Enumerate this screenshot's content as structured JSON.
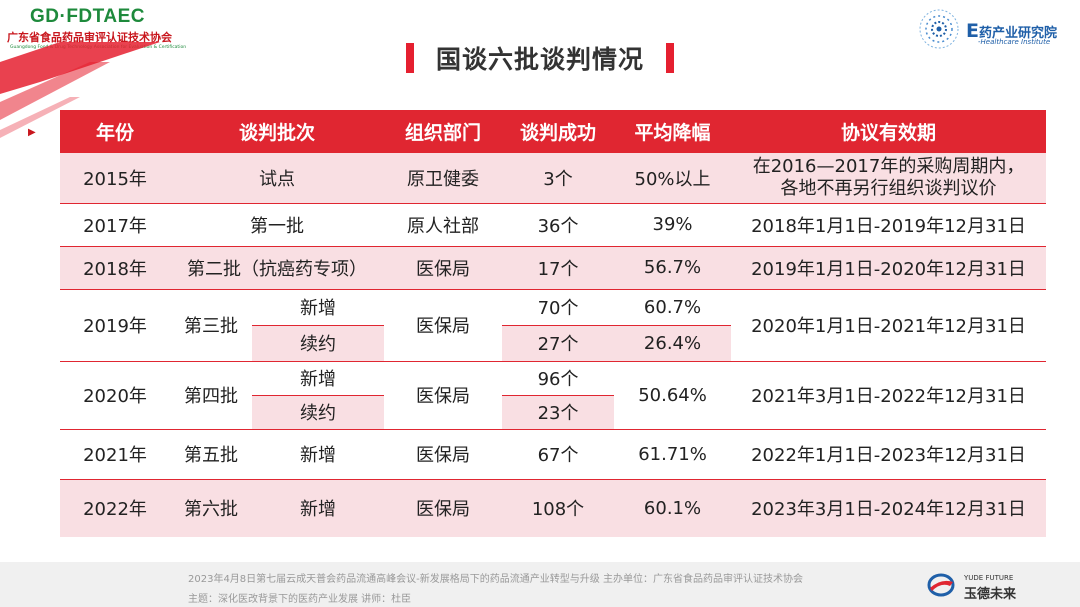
{
  "header": {
    "logo_left": {
      "brand": "GD·FDTAEC",
      "cn": "广东省食品药品审评认证技术协会",
      "en": "Guangdong Food & Drug Technology Association for Evaluation & Certification"
    },
    "title": "国谈六批谈判情况",
    "logo_right": {
      "prefix": "E",
      "name": "药产业研究院",
      "tagline": "-Healthcare Institute"
    }
  },
  "table": {
    "headers": [
      "年份",
      "谈判批次",
      "组织部门",
      "谈判成功",
      "平均降幅",
      "协议有效期"
    ],
    "r2015": {
      "year": "2015年",
      "batch": "试点",
      "dept": "原卫健委",
      "success": "3个",
      "drop": "50%以上",
      "validity_l1": "在2016—2017年的采购周期内，",
      "validity_l2": "各地不再另行组织谈判议价"
    },
    "r2017": {
      "year": "2017年",
      "batch": "第一批",
      "dept": "原人社部",
      "success": "36个",
      "drop": "39%",
      "validity": "2018年1月1日-2019年12月31日"
    },
    "r2018": {
      "year": "2018年",
      "batch": "第二批（抗癌药专项）",
      "dept": "医保局",
      "success": "17个",
      "drop": "56.7%",
      "validity": "2019年1月1日-2020年12月31日"
    },
    "r2019": {
      "year": "2019年",
      "batch": "第三批",
      "type_new": "新增",
      "type_renew": "续约",
      "dept": "医保局",
      "success_new": "70个",
      "success_renew": "27个",
      "drop_new": "60.7%",
      "drop_renew": "26.4%",
      "validity": "2020年1月1日-2021年12月31日"
    },
    "r2020": {
      "year": "2020年",
      "batch": "第四批",
      "type_new": "新增",
      "type_renew": "续约",
      "dept": "医保局",
      "success_new": "96个",
      "success_renew": "23个",
      "drop": "50.64%",
      "validity": "2021年3月1日-2022年12月31日"
    },
    "r2021": {
      "year": "2021年",
      "batch": "第五批",
      "type": "新增",
      "dept": "医保局",
      "success": "67个",
      "drop": "61.71%",
      "validity": "2022年1月1日-2023年12月31日"
    },
    "r2022": {
      "year": "2022年",
      "batch": "第六批",
      "type": "新增",
      "dept": "医保局",
      "success": "108个",
      "drop": "60.1%",
      "validity": "2023年3月1日-2024年12月31日"
    }
  },
  "footer": {
    "line1": "2023年4月8日第七届云成天普会药品流通高峰会议-新发展格局下的药品流通产业转型与升级      主办单位：广东省食品药品审评认证技术协会",
    "line2": "主题：深化医改背景下的医药产业发展  讲师：杜臣",
    "brand_en": "YUDE FUTURE",
    "brand_cn": "玉德未来"
  },
  "colors": {
    "accent": "#e02631",
    "row_pink": "#f9dfe3",
    "logo_green": "#1e8a3c",
    "logo_blue": "#1f5fa8"
  }
}
